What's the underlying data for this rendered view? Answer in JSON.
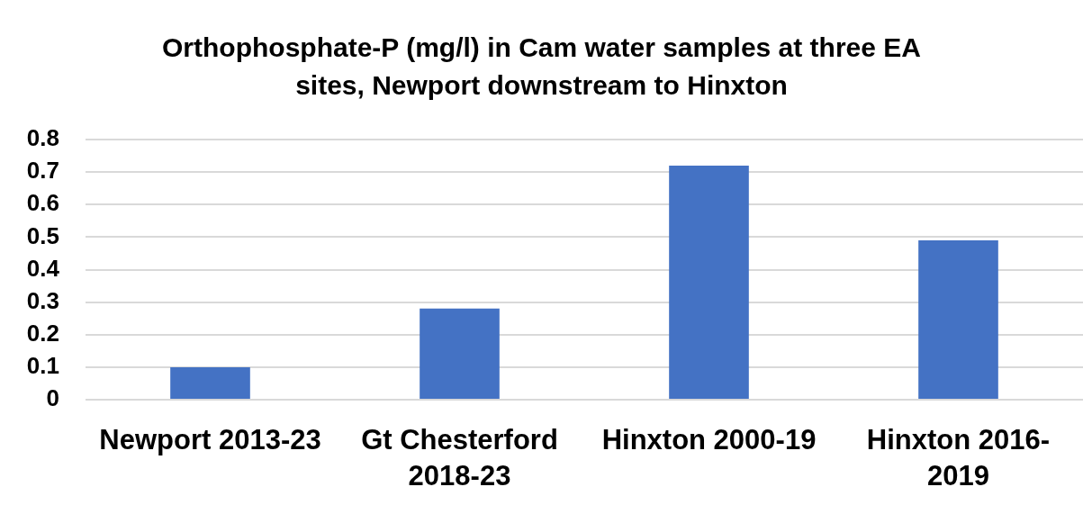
{
  "chart_data": {
    "type": "bar",
    "title": "Orthophosphate-P (mg/l) in Cam water samples at three EA sites, Newport downstream to Hinxton",
    "categories": [
      "Newport 2013-23",
      "Gt Chesterford 2018-23",
      "Hinxton 2000-19",
      "Hinxton 2016-2019"
    ],
    "values": [
      0.1,
      0.28,
      0.72,
      0.49
    ],
    "color": "#4472c4",
    "ylim": [
      0,
      0.8
    ],
    "yticks": [
      0,
      0.1,
      0.2,
      0.3,
      0.4,
      0.5,
      0.6,
      0.7,
      0.8
    ],
    "grid": "y"
  }
}
